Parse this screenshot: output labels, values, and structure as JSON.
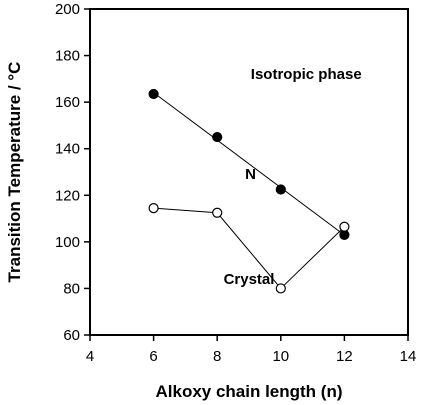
{
  "chart_data": {
    "type": "scatter",
    "xlabel": "Alkoxy chain length (n)",
    "ylabel": "Transition Temperature / °C",
    "xlim": [
      4,
      14
    ],
    "ylim": [
      60,
      200
    ],
    "x_ticks": [
      4,
      6,
      8,
      10,
      12,
      14
    ],
    "y_ticks": [
      60,
      80,
      100,
      120,
      140,
      160,
      180,
      200
    ],
    "grid": false,
    "series": [
      {
        "marker": "filled-circle",
        "fit": "linear",
        "x": [
          6,
          8,
          10,
          12
        ],
        "y": [
          163.5,
          145,
          122.5,
          103
        ]
      },
      {
        "marker": "open-circle",
        "fit": "connected",
        "x": [
          6,
          8,
          10,
          12
        ],
        "y": [
          114.5,
          112.5,
          80,
          106.5
        ]
      }
    ],
    "annotations": [
      {
        "text": "Isotropic phase",
        "x": 10.8,
        "y": 170
      },
      {
        "text": "N",
        "x": 9.05,
        "y": 127
      },
      {
        "text": "Crystal",
        "x": 9.0,
        "y": 82
      }
    ]
  }
}
